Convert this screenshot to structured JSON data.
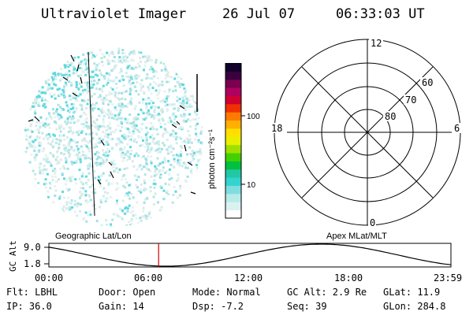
{
  "header": {
    "title": "Ultraviolet Imager",
    "date": "26 Jul 07",
    "time": "06:33:03 UT"
  },
  "colorbar": {
    "unit_label": "photon cm⁻²s⁻¹",
    "ticks": [
      "100",
      "10"
    ],
    "colors": [
      "#ffffff",
      "#d9f2f0",
      "#b8ebe8",
      "#7fdde0",
      "#33d4d0",
      "#22c7a4",
      "#00c040",
      "#44d100",
      "#a0e000",
      "#e8f000",
      "#ffe000",
      "#ffb000",
      "#ff7a00",
      "#f03000",
      "#d00030",
      "#b00060",
      "#7a0050",
      "#3a0040",
      "#10002a"
    ]
  },
  "polar_plot": {
    "mlt_labels": [
      "12",
      "18",
      "6",
      "0"
    ],
    "lat_labels": [
      "60",
      "70",
      "80"
    ]
  },
  "altitude_plot": {
    "y_axis_label": "GC Alt",
    "y_ticks": [
      "9.0",
      "1.8"
    ],
    "left_caption": "Geographic Lat/Lon",
    "right_caption": "Apex MLat/MLT",
    "x_ticks": [
      "00:00",
      "06:00",
      "12:00",
      "18:00",
      "23:59"
    ],
    "marker_time_hours": 6.55
  },
  "info": {
    "flt": "Flt: LBHL",
    "door": "Door: Open",
    "mode": "Mode: Normal",
    "gc_alt": "GC Alt: 2.9 Re",
    "glat": "GLat:  11.9",
    "ip": "IP: 36.0",
    "gain": "Gain: 14",
    "dsp": "Dsp:   -7.2",
    "seq": "Seq: 39",
    "glon": "GLon: 284.8"
  }
}
